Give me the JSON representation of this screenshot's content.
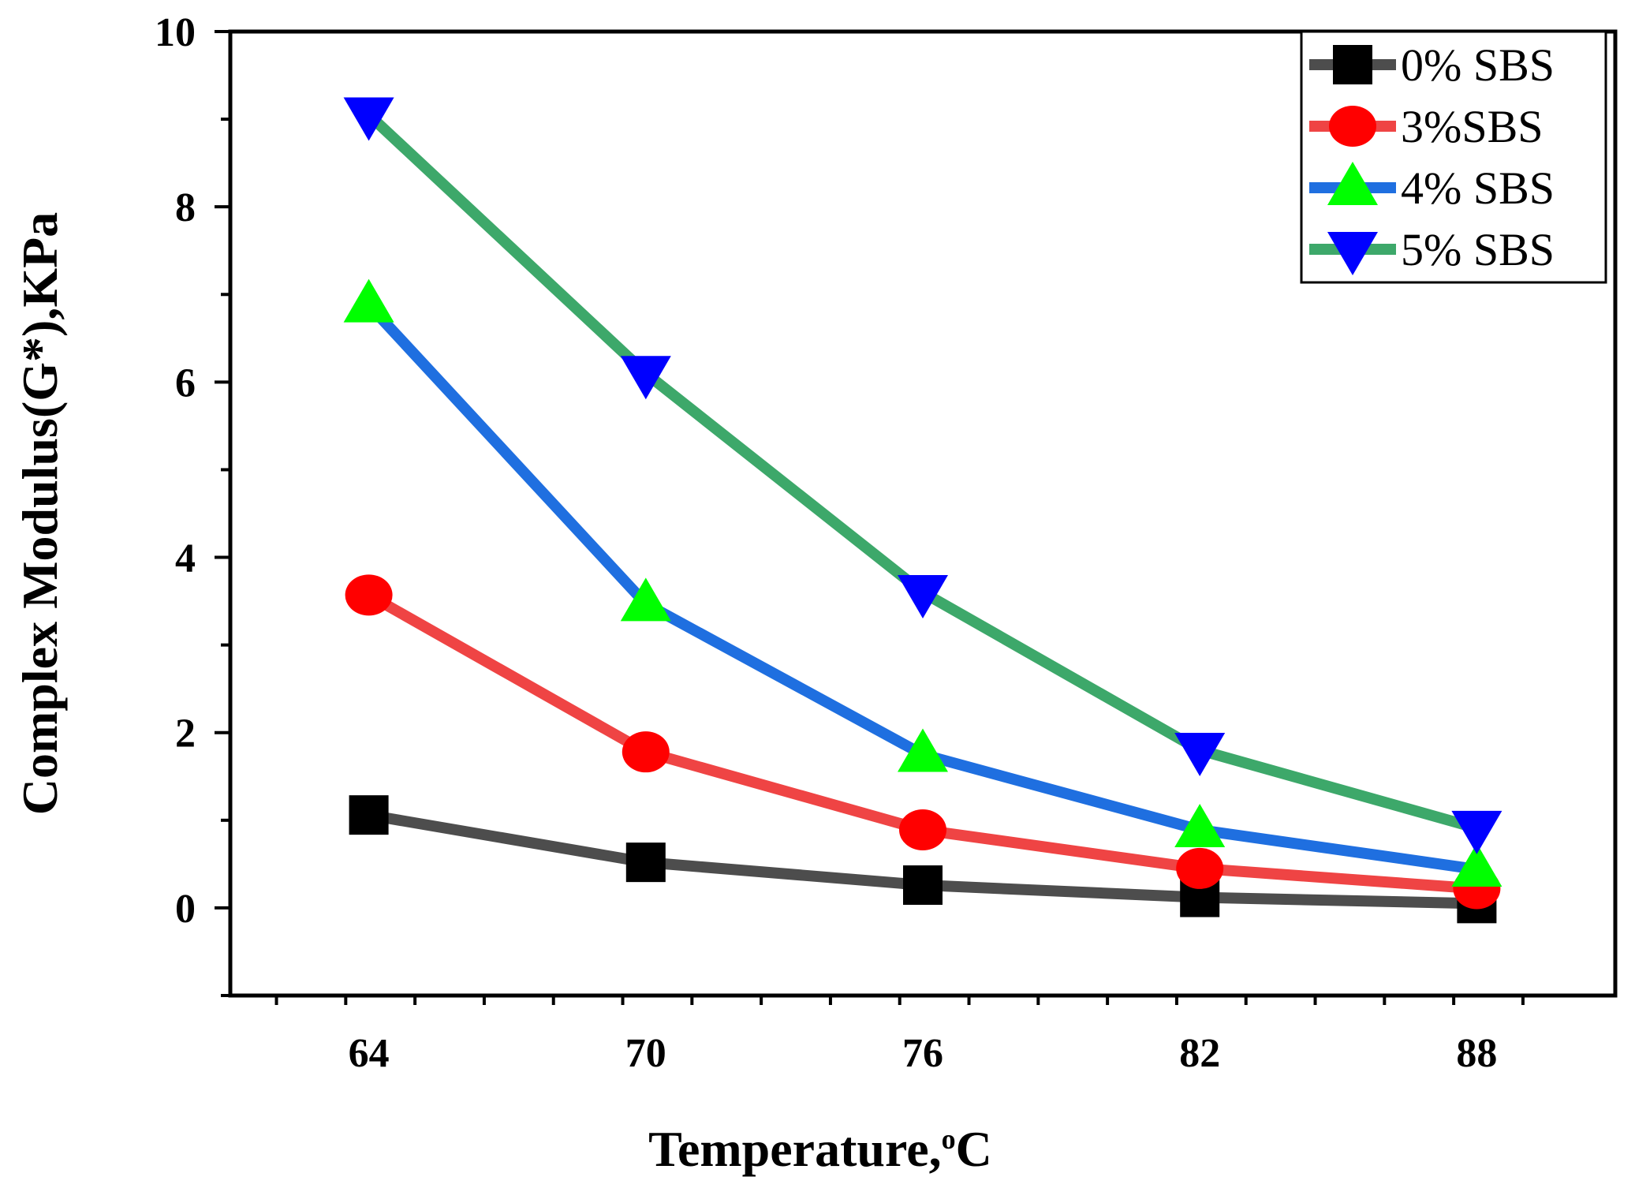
{
  "chart_data": {
    "type": "line",
    "title": "",
    "xlabel": "Temperature,",
    "xlabel_unit_sup": "o",
    "xlabel_unit": "C",
    "ylabel": "Complex Modulus(G*),KPa",
    "x": [
      64,
      70,
      76,
      82,
      88
    ],
    "x_tick_labels": [
      "64",
      "70",
      "76",
      "82",
      "88"
    ],
    "xlim": [
      61,
      91
    ],
    "ylim": [
      -1,
      10
    ],
    "y_ticks": [
      0,
      2,
      4,
      6,
      8,
      10
    ],
    "y_tick_labels": [
      "0",
      "2",
      "4",
      "6",
      "8",
      "10"
    ],
    "grid": false,
    "legend_position": "top-right",
    "series": [
      {
        "name": "0% SBS",
        "line_color": "#4d4d4d",
        "marker": "square",
        "marker_color": "#000000",
        "values": [
          1.06,
          0.52,
          0.26,
          0.12,
          0.05
        ]
      },
      {
        "name": "3%SBS",
        "line_color": "#ef4444",
        "marker": "circle",
        "marker_color": "#ff0000",
        "values": [
          3.57,
          1.78,
          0.89,
          0.45,
          0.22
        ]
      },
      {
        "name": "4% SBS",
        "line_color": "#1f6fe0",
        "marker": "triangle-up",
        "marker_color": "#00ff00",
        "values": [
          6.88,
          3.47,
          1.75,
          0.89,
          0.44
        ]
      },
      {
        "name": "5% SBS",
        "line_color": "#3da86a",
        "marker": "triangle-down",
        "marker_color": "#0000ff",
        "values": [
          9.05,
          6.1,
          3.6,
          1.8,
          0.91
        ]
      }
    ]
  }
}
